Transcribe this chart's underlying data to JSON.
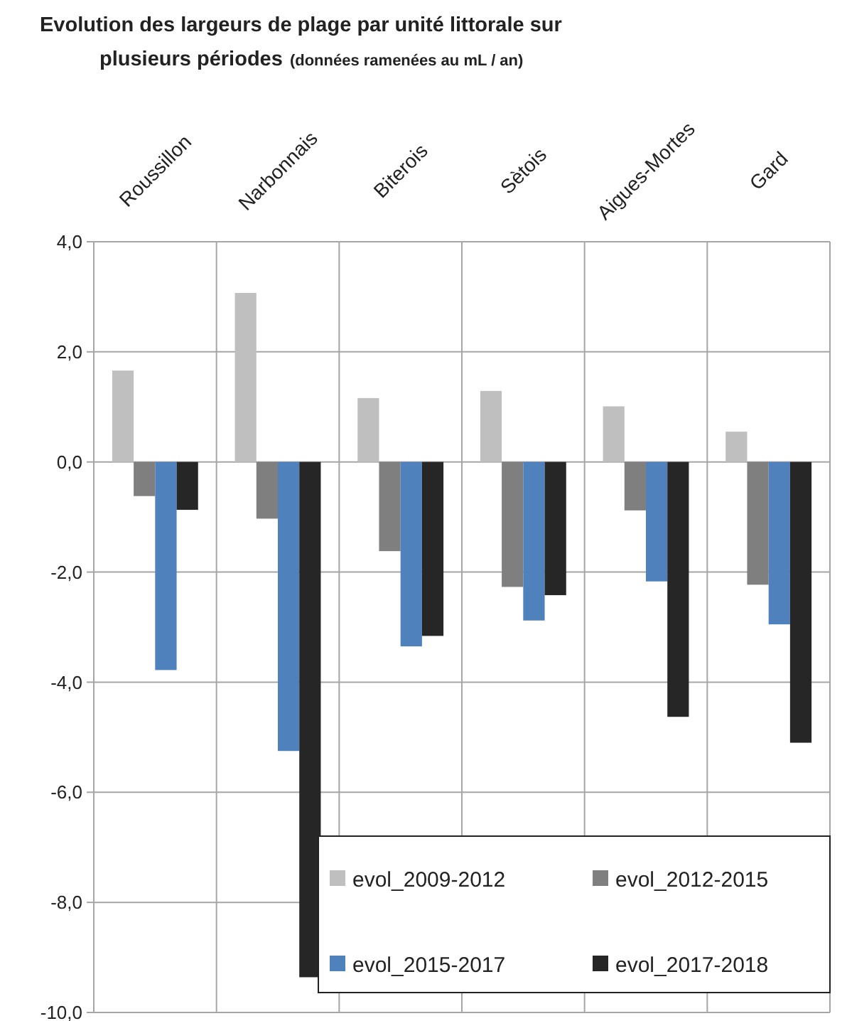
{
  "chart_data": {
    "type": "bar",
    "title": "Evolution des largeurs de plage par unité littorale sur plusieurs périodes",
    "subtitle": "(données ramenées au mL / an)",
    "categories": [
      "Roussillon",
      "Narbonnais",
      "Biterois",
      "Sètois",
      "Aigues-Mortes",
      "Gard"
    ],
    "series": [
      {
        "name": "evol_2009-2012",
        "color": "#bfbfbf",
        "values": [
          1.66,
          3.07,
          1.16,
          1.29,
          1.01,
          0.55
        ]
      },
      {
        "name": "evol_2012-2015",
        "color": "#7f7f7f",
        "values": [
          -0.62,
          -1.03,
          -1.62,
          -2.27,
          -0.88,
          -2.23
        ]
      },
      {
        "name": "evol_2015-2017",
        "color": "#4f81bd",
        "values": [
          -3.78,
          -5.25,
          -3.35,
          -2.88,
          -2.17,
          -2.95
        ]
      },
      {
        "name": "evol_2017-2018",
        "color": "#262626",
        "values": [
          -0.87,
          -9.36,
          -3.16,
          -2.42,
          -4.63,
          -5.1
        ]
      }
    ],
    "ylim": [
      -10,
      4
    ],
    "yticks": [
      {
        "value": 4,
        "label": "4,0"
      },
      {
        "value": 2,
        "label": "2,0"
      },
      {
        "value": 0,
        "label": "0,0"
      },
      {
        "value": -2,
        "label": "-2,0"
      },
      {
        "value": -4,
        "label": "-4,0"
      },
      {
        "value": -6,
        "label": "-6,0"
      },
      {
        "value": -8,
        "label": "-8,0"
      },
      {
        "value": -10,
        "label": "-10,0"
      }
    ],
    "grid": true,
    "legend": "bottom right"
  }
}
